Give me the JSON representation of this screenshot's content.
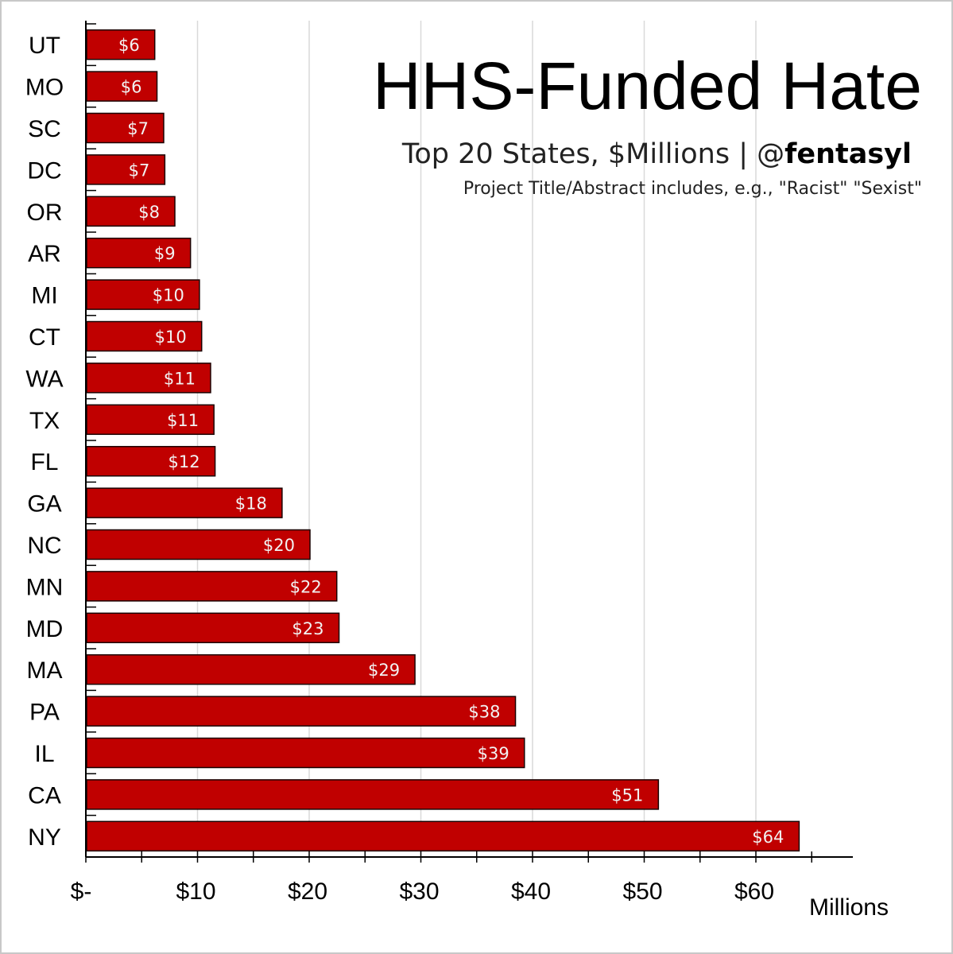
{
  "title": "HHS-Funded Hate",
  "subtitle": {
    "text": "Top 20 States, $Millions | @",
    "handle": "fentasyl"
  },
  "note": "Project Title/Abstract includes, e.g., \"Racist\" \"Sexist\"",
  "colors": {
    "bar_fill": "#c00000",
    "bar_stroke": "#1a0000",
    "gridline": "#d9d9d9",
    "axis": "#000000",
    "data_label": "#f2f2f2"
  },
  "chart_data": {
    "type": "bar",
    "orientation": "horizontal",
    "categories": [
      "UT",
      "MO",
      "SC",
      "DC",
      "OR",
      "AR",
      "MI",
      "CT",
      "WA",
      "TX",
      "FL",
      "GA",
      "NC",
      "MN",
      "MD",
      "MA",
      "PA",
      "IL",
      "CA",
      "NY"
    ],
    "values": [
      6.1,
      6.3,
      6.9,
      7.0,
      7.9,
      9.3,
      10.1,
      10.3,
      11.1,
      11.4,
      11.5,
      17.5,
      20.0,
      22.4,
      22.6,
      29.4,
      38.4,
      39.2,
      51.2,
      63.8
    ],
    "data_labels": [
      "$6",
      "$6",
      "$7",
      "$7",
      "$8",
      "$9",
      "$10",
      "$10",
      "$11",
      "$11",
      "$12",
      "$18",
      "$20",
      "$22",
      "$23",
      "$29",
      "$38",
      "$39",
      "$51",
      "$64"
    ],
    "x_ticks": [
      0,
      10,
      20,
      30,
      40,
      50,
      60
    ],
    "x_tick_labels": [
      "$-",
      "$10",
      "$20",
      "$30",
      "$40",
      "$50",
      "$60"
    ],
    "xlim": [
      0,
      69
    ],
    "xlabel": "Millions",
    "grid": true,
    "legend": "none"
  }
}
